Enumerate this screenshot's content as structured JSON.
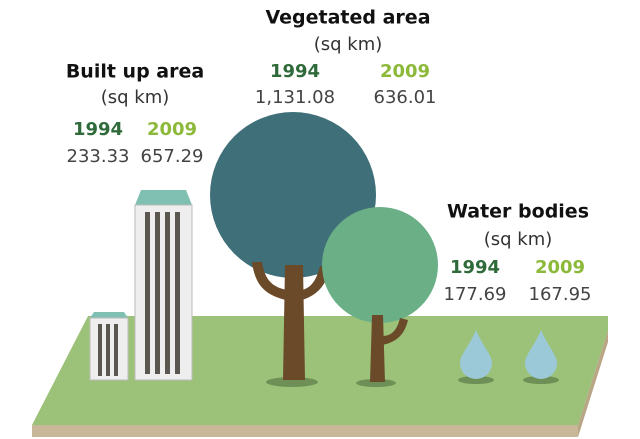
{
  "sections": [
    {
      "title": "Built up area",
      "unit": "(sq km)",
      "years": [
        {
          "year": "1994",
          "value": "233.33"
        },
        {
          "year": "2009",
          "value": "657.29"
        }
      ]
    },
    {
      "title": "Vegetated area",
      "unit": "(sq km)",
      "years": [
        {
          "year": "1994",
          "value": "1,131.08"
        },
        {
          "year": "2009",
          "value": "636.01"
        }
      ]
    },
    {
      "title": "Water bodies",
      "unit": "(sq km)",
      "years": [
        {
          "year": "1994",
          "value": "177.69"
        },
        {
          "year": "2009",
          "value": "167.95"
        }
      ]
    }
  ]
}
